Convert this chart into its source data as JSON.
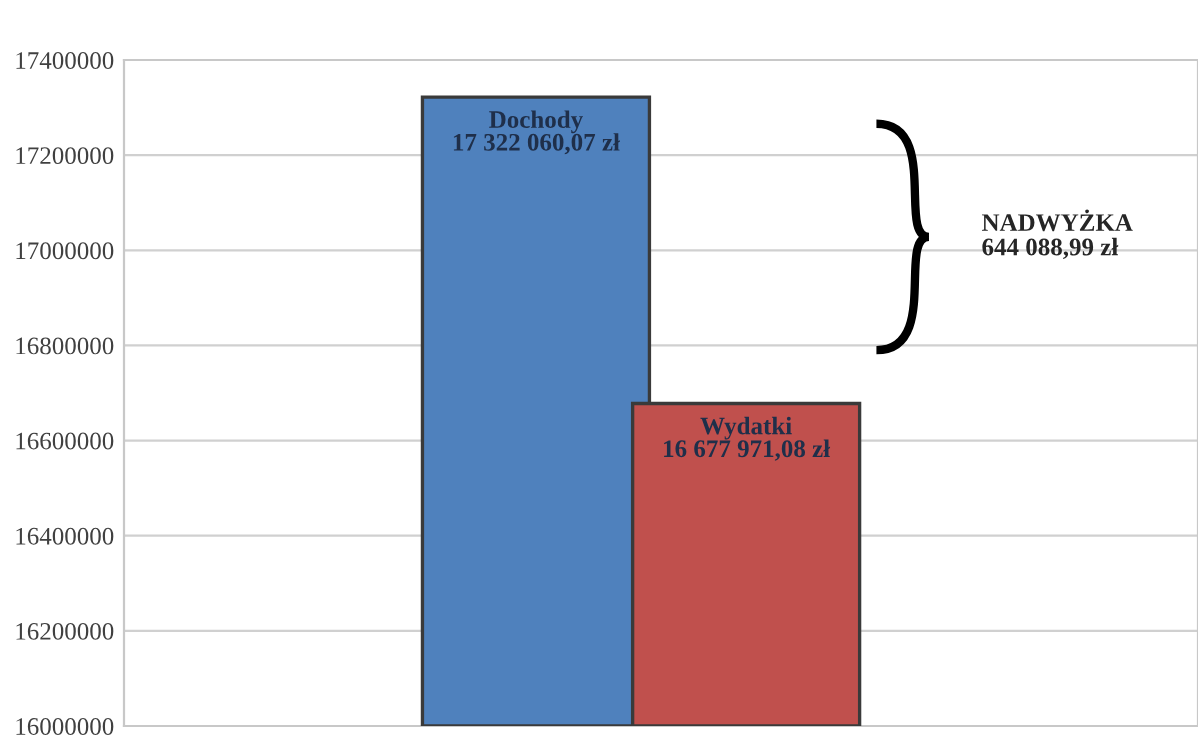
{
  "chart_data": {
    "type": "bar",
    "categories": [
      null,
      null
    ],
    "values": [
      17322060.07,
      16677971.08
    ],
    "colors": [
      "#4f81bd",
      "#c0504d"
    ],
    "value_labels": [
      "Dochody\n17 322 060,07 zł",
      "Wydatki\n16 677 971,08 zł"
    ],
    "annotations": [
      "NADWYŻKA\n644 088,99 zł"
    ],
    "ylim": [
      16000000,
      17400000
    ],
    "yticks": [
      16000000,
      16200000,
      16400000,
      16600000,
      16800000,
      17000000,
      17200000,
      17400000
    ],
    "grid": "y",
    "legend": false
  }
}
